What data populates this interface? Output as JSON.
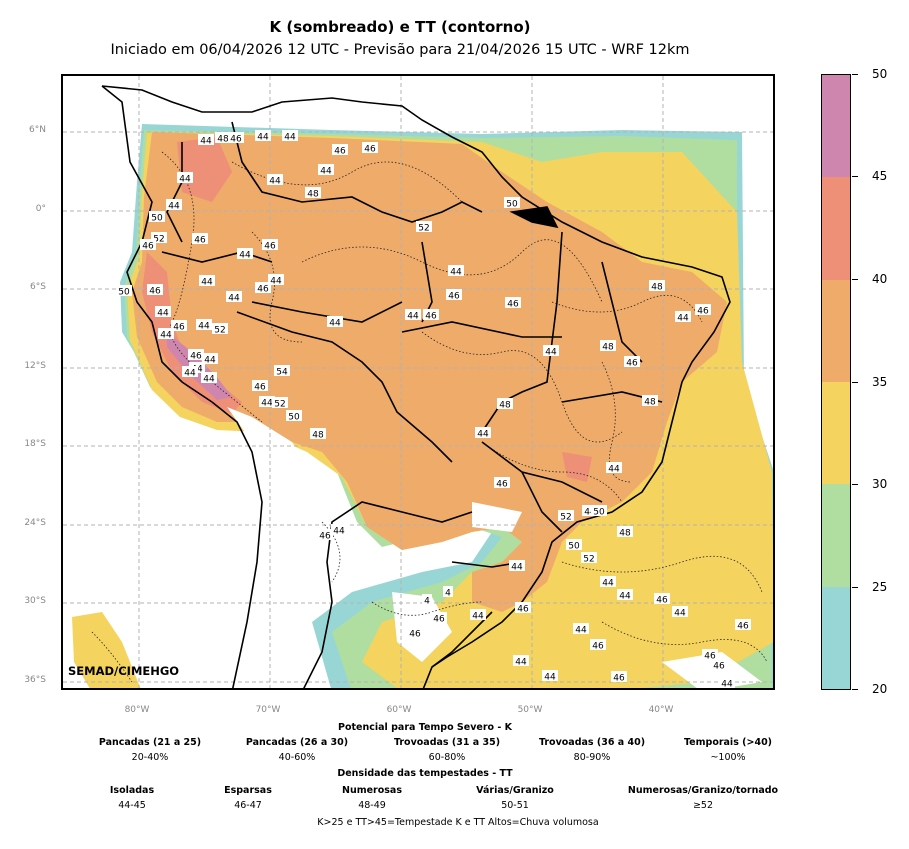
{
  "title": "K (sombreado) e TT (contorno)",
  "subtitle": "Iniciado em 06/04/2026 12 UTC - Previsão para 21/04/2026 15 UTC - WRF 12km",
  "credit": "SEMAD/CIMEHGO",
  "map": {
    "lat_labels": [
      "6°N",
      "0°",
      "6°S",
      "12°S",
      "18°S",
      "24°S",
      "30°S",
      "36°S"
    ],
    "lon_labels": [
      "80°W",
      "70°W",
      "60°W",
      "50°W",
      "40°W"
    ],
    "shading_colors": {
      "k_20_25": "#97d6d4",
      "k_25_30": "#afdea0",
      "k_30_35": "#f4d35e",
      "k_35_40": "#efab6a",
      "k_40_45": "#ee8f77",
      "k_45_50": "#cf86ae"
    },
    "contour_labels": [
      "44",
      "48",
      "46",
      "44",
      "44",
      "46",
      "46",
      "44",
      "44",
      "48",
      "44",
      "44",
      "50",
      "52",
      "46",
      "46",
      "46",
      "44",
      "44",
      "44",
      "44",
      "46",
      "44",
      "46",
      "44",
      "44",
      "52",
      "50",
      "46",
      "44",
      "44",
      "46",
      "44",
      "44",
      "46",
      "54",
      "44",
      "52",
      "50",
      "48",
      "50",
      "52",
      "44",
      "46",
      "46",
      "44",
      "46",
      "44",
      "44",
      "48",
      "46",
      "48",
      "44",
      "46",
      "48",
      "48",
      "44",
      "44",
      "46",
      "52",
      "44",
      "50",
      "48",
      "50",
      "52",
      "44",
      "46",
      "44",
      "44",
      "44",
      "46",
      "44",
      "46",
      "44",
      "46",
      "46",
      "46",
      "44",
      "46",
      "44",
      "44",
      "46",
      "46",
      "4",
      "4",
      "44",
      "46"
    ]
  },
  "colorbar": {
    "ticks": [
      "20",
      "25",
      "30",
      "35",
      "40",
      "45",
      "50"
    ],
    "colors": [
      "#97d6d4",
      "#afdea0",
      "#f4d35e",
      "#efab6a",
      "#ee8f77",
      "#cf86ae"
    ]
  },
  "legend": {
    "k_heading": "Potencial para Tempo Severo - K",
    "k_items": [
      {
        "head": "Pancadas (21 a 25)",
        "value": "20-40%"
      },
      {
        "head": "Pancadas (26 a 30)",
        "value": "40-60%"
      },
      {
        "head": "Trovoadas (31 a 35)",
        "value": "60-80%"
      },
      {
        "head": "Trovoadas (36 a 40)",
        "value": "80-90%"
      },
      {
        "head": "Temporais (>40)",
        "value": "~100%"
      }
    ],
    "tt_heading": "Densidade das tempestades - TT",
    "tt_items": [
      {
        "head": "Isoladas",
        "value": "44-45"
      },
      {
        "head": "Esparsas",
        "value": "46-47"
      },
      {
        "head": "Numerosas",
        "value": "48-49"
      },
      {
        "head": "Várias/Granizo",
        "value": "50-51"
      },
      {
        "head": "Numerosas/Granizo/tornado",
        "value": "≥52"
      }
    ],
    "footer": "K>25 e TT>45=Tempestade      K e TT Altos=Chuva volumosa"
  }
}
